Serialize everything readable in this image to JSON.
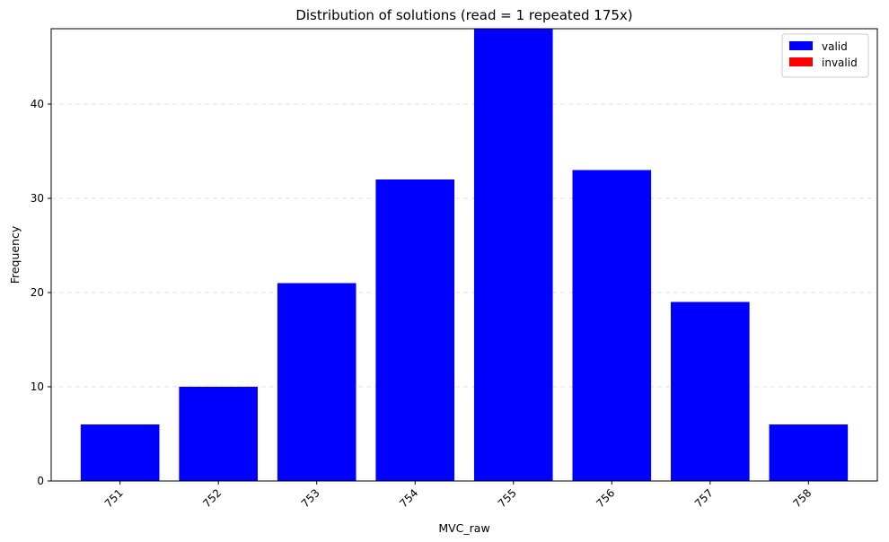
{
  "chart_data": {
    "type": "bar",
    "title": "Distribution of solutions (read = 1 repeated 175x)",
    "xlabel": "MVC_raw",
    "ylabel": "Frequency",
    "categories": [
      "751",
      "752",
      "753",
      "754",
      "755",
      "756",
      "757",
      "758"
    ],
    "series": [
      {
        "name": "valid",
        "color": "#0000ff",
        "values": [
          6,
          10,
          21,
          32,
          48,
          33,
          19,
          6
        ]
      },
      {
        "name": "invalid",
        "color": "#ff0000",
        "values": [
          0,
          0,
          0,
          0,
          0,
          0,
          0,
          0
        ]
      }
    ],
    "ylim": [
      0,
      48
    ],
    "yticks": [
      0,
      10,
      20,
      30,
      40
    ],
    "grid": {
      "y": true,
      "style": "dashed"
    },
    "legend": {
      "placement": "top-right"
    },
    "xtick_rotation_deg": 45
  }
}
